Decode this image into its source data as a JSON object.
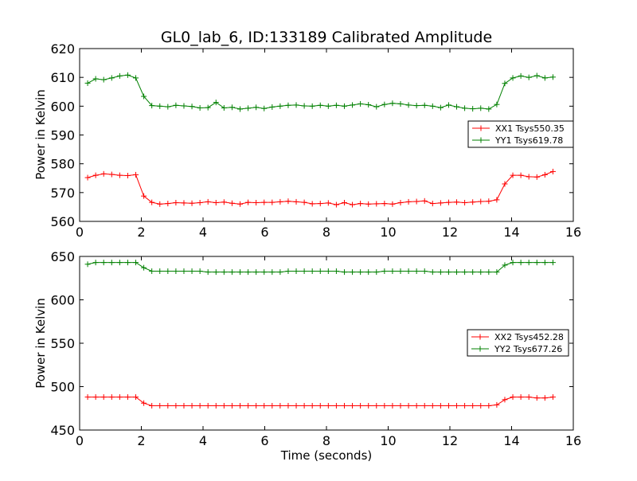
{
  "chart_data": [
    {
      "type": "line",
      "title": "GL0_lab_6, ID:133189 Calibrated Amplitude",
      "xlabel": "",
      "ylabel": "Power in Kelvin",
      "xlim": [
        0,
        16
      ],
      "ylim": [
        560,
        620
      ],
      "x_ticks": [
        0,
        2,
        4,
        6,
        8,
        10,
        12,
        14,
        16
      ],
      "y_ticks": [
        560,
        570,
        580,
        590,
        600,
        610,
        620
      ],
      "legend_position": "center-right",
      "grid": false,
      "x": [
        0.26,
        0.52,
        0.78,
        1.04,
        1.3,
        1.56,
        1.82,
        2.08,
        2.34,
        2.6,
        2.86,
        3.12,
        3.38,
        3.64,
        3.9,
        4.16,
        4.42,
        4.68,
        4.94,
        5.2,
        5.46,
        5.72,
        5.98,
        6.24,
        6.5,
        6.76,
        7.02,
        7.28,
        7.54,
        7.8,
        8.06,
        8.32,
        8.58,
        8.84,
        9.1,
        9.36,
        9.62,
        9.88,
        10.14,
        10.4,
        10.66,
        10.92,
        11.18,
        11.44,
        11.7,
        11.96,
        12.22,
        12.48,
        12.74,
        13.0,
        13.26,
        13.52,
        13.78,
        14.04,
        14.3,
        14.56,
        14.82,
        15.08,
        15.34
      ],
      "series": [
        {
          "name": "XX1 Tsys550.35",
          "color": "#ff0000",
          "values": [
            575.2,
            576.0,
            576.5,
            576.3,
            576.0,
            575.9,
            576.2,
            568.8,
            566.6,
            566.0,
            566.2,
            566.5,
            566.4,
            566.3,
            566.5,
            566.8,
            566.5,
            566.7,
            566.3,
            566.0,
            566.6,
            566.5,
            566.6,
            566.6,
            566.8,
            567.0,
            566.8,
            566.6,
            566.1,
            566.2,
            566.4,
            565.8,
            566.5,
            565.8,
            566.2,
            566.0,
            566.1,
            566.2,
            566.0,
            566.5,
            566.8,
            566.9,
            567.1,
            566.2,
            566.4,
            566.6,
            566.7,
            566.5,
            566.7,
            566.9,
            567.0,
            567.5,
            573.0,
            576.0,
            576.0,
            575.5,
            575.4,
            576.2,
            577.3
          ]
        },
        {
          "name": "YY1 Tsys619.78",
          "color": "#008000",
          "values": [
            608.0,
            609.5,
            609.2,
            609.8,
            610.5,
            610.8,
            609.8,
            603.4,
            600.2,
            600.0,
            599.8,
            600.3,
            600.1,
            599.9,
            599.4,
            599.5,
            601.3,
            599.4,
            599.6,
            599.0,
            599.3,
            599.6,
            599.2,
            599.7,
            600.0,
            600.3,
            600.4,
            600.1,
            600.0,
            600.3,
            600.0,
            600.3,
            600.0,
            600.4,
            600.8,
            600.5,
            599.8,
            600.6,
            601.0,
            600.8,
            600.4,
            600.2,
            600.3,
            600.0,
            599.5,
            600.4,
            599.8,
            599.3,
            599.1,
            599.3,
            599.0,
            600.6,
            607.9,
            609.8,
            610.5,
            610.0,
            610.6,
            609.8,
            610.1
          ]
        }
      ]
    },
    {
      "type": "line",
      "title": "",
      "xlabel": "Time (seconds)",
      "ylabel": "Power in Kelvin",
      "xlim": [
        0,
        16
      ],
      "ylim": [
        450,
        650
      ],
      "x_ticks": [
        0,
        2,
        4,
        6,
        8,
        10,
        12,
        14,
        16
      ],
      "y_ticks": [
        450,
        500,
        550,
        600,
        650
      ],
      "legend_position": "center-right",
      "grid": false,
      "x": [
        0.26,
        0.52,
        0.78,
        1.04,
        1.3,
        1.56,
        1.82,
        2.08,
        2.34,
        2.6,
        2.86,
        3.12,
        3.38,
        3.64,
        3.9,
        4.16,
        4.42,
        4.68,
        4.94,
        5.2,
        5.46,
        5.72,
        5.98,
        6.24,
        6.5,
        6.76,
        7.02,
        7.28,
        7.54,
        7.8,
        8.06,
        8.32,
        8.58,
        8.84,
        9.1,
        9.36,
        9.62,
        9.88,
        10.14,
        10.4,
        10.66,
        10.92,
        11.18,
        11.44,
        11.7,
        11.96,
        12.22,
        12.48,
        12.74,
        13.0,
        13.26,
        13.52,
        13.78,
        14.04,
        14.3,
        14.56,
        14.82,
        15.08,
        15.34
      ],
      "series": [
        {
          "name": "XX2 Tsys452.28",
          "color": "#ff0000",
          "values": [
            488,
            488,
            488,
            488,
            488,
            488,
            488,
            481,
            478,
            478,
            478,
            478,
            478,
            478,
            478,
            478,
            478,
            478,
            478,
            478,
            478,
            478,
            478,
            478,
            478,
            478,
            478,
            478,
            478,
            478,
            478,
            478,
            478,
            478,
            478,
            478,
            478,
            478,
            478,
            478,
            478,
            478,
            478,
            478,
            478,
            478,
            478,
            478,
            478,
            478,
            478,
            479,
            485,
            488,
            488,
            488,
            487,
            487,
            488
          ]
        },
        {
          "name": "YY2 Tsys677.26",
          "color": "#008000",
          "values": [
            641,
            643,
            643,
            643,
            643,
            643,
            643,
            637,
            633,
            633,
            633,
            633,
            633,
            633,
            633,
            632,
            632,
            632,
            632,
            632,
            632,
            632,
            632,
            632,
            632,
            633,
            633,
            633,
            633,
            633,
            633,
            633,
            632,
            632,
            632,
            632,
            632,
            633,
            633,
            633,
            633,
            633,
            633,
            632,
            632,
            632,
            632,
            632,
            632,
            632,
            632,
            632,
            640,
            643,
            643,
            643,
            643,
            643,
            643
          ]
        }
      ]
    }
  ]
}
